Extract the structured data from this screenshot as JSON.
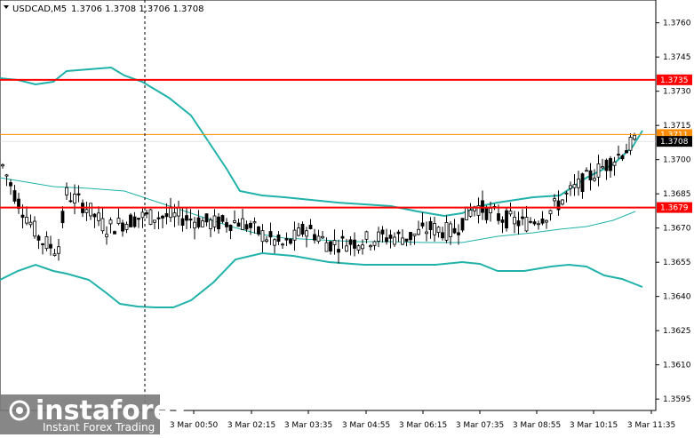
{
  "header": {
    "symbol": "USDCAD,M5",
    "ohlc": "1.3706 1.3708 1.3706 1.3708"
  },
  "levels": {
    "upper": "1.3735",
    "current_orange": "1.3711",
    "current_price": "1.3708",
    "lower": "1.3679"
  },
  "colors": {
    "background": "#ffffff",
    "candles": "#000000",
    "bands": "#20b2aa",
    "level_line": "#ff0000",
    "orange_line": "#ff8c00",
    "badge_red": "#ff0000",
    "badge_black": "#000000"
  },
  "watermark": {
    "brand": "instaforex",
    "tagline": "Instant Forex Trading"
  },
  "chart_data": {
    "type": "candlestick",
    "title": "USDCAD,M5",
    "ylim": [
      1.359,
      1.377
    ],
    "y_ticks": [
      "1.3760",
      "1.3745",
      "1.3730",
      "1.3715",
      "1.3700",
      "1.3685",
      "1.3670",
      "1.3655",
      "1.3640",
      "1.3625",
      "1.3610",
      "1.3595"
    ],
    "x_ticks": [
      "3 Mar 00:50",
      "3 Mar 02:15",
      "3 Mar 03:35",
      "3 Mar 04:55",
      "3 Mar 06:15",
      "3 Mar 07:35",
      "3 Mar 08:55",
      "3 Mar 10:15",
      "3 Mar 11:35"
    ],
    "horizontal_levels": [
      1.3735,
      1.3679
    ],
    "current_price": 1.3708,
    "grid": true
  }
}
